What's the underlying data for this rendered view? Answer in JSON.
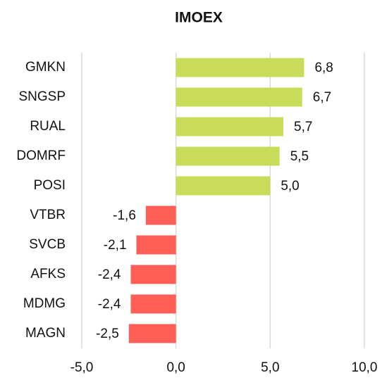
{
  "chart_data": {
    "type": "barh",
    "title": "IMOEX",
    "categories": [
      "GMKN",
      "SNGSP",
      "RUAL",
      "DOMRF",
      "POSI",
      "VTBR",
      "SVCB",
      "AFKS",
      "MDMG",
      "MAGN"
    ],
    "values": [
      6.8,
      6.7,
      5.7,
      5.5,
      5.0,
      -1.6,
      -2.1,
      -2.4,
      -2.4,
      -2.5
    ],
    "value_labels": [
      "6,8",
      "6,7",
      "5,7",
      "5,5",
      "5,0",
      "-1,6",
      "-2,1",
      "-2,4",
      "-2,4",
      "-2,5"
    ],
    "colors": [
      "#c8dc5a",
      "#c8dc5a",
      "#c8dc5a",
      "#c8dc5a",
      "#c8dc5a",
      "#ff5f57",
      "#ff5f57",
      "#ff5f57",
      "#ff5f57",
      "#ff5f57"
    ],
    "xlim": [
      -5,
      10
    ],
    "xticks": [
      {
        "value": -5,
        "label": "-5,0"
      },
      {
        "value": 0,
        "label": "0,0"
      },
      {
        "value": 5,
        "label": "5,0"
      },
      {
        "value": 10,
        "label": "10,0"
      }
    ],
    "grid": true
  }
}
